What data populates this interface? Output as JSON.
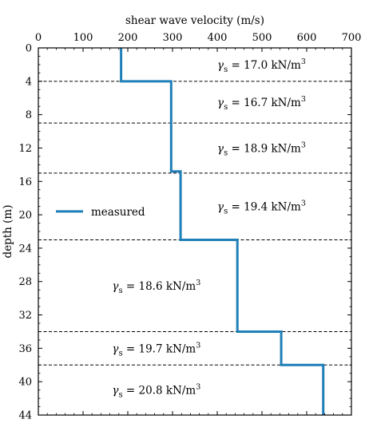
{
  "chart_data": {
    "type": "line",
    "xlabel": "shear wave velocity (m/s)",
    "ylabel": "depth (m)",
    "xlim": [
      0,
      700
    ],
    "ylim": [
      0,
      44
    ],
    "y_inverted": true,
    "x_axis_position": "top",
    "x_ticks": [
      0,
      100,
      200,
      300,
      400,
      500,
      600,
      700
    ],
    "y_ticks": [
      0,
      4,
      8,
      12,
      16,
      20,
      24,
      28,
      32,
      36,
      40,
      44
    ],
    "legend_position": "center-left",
    "series": [
      {
        "name": "measured",
        "color": "#1f7fb8",
        "profile": [
          {
            "vs": 185,
            "top": 0,
            "bottom": 4
          },
          {
            "vs": 297,
            "top": 4,
            "bottom": 14.8
          },
          {
            "vs": 318,
            "top": 14.8,
            "bottom": 23
          },
          {
            "vs": 445,
            "top": 23,
            "bottom": 34
          },
          {
            "vs": 543,
            "top": 34,
            "bottom": 38
          },
          {
            "vs": 637,
            "top": 38,
            "bottom": 44
          }
        ]
      }
    ],
    "layer_boundaries": [
      4,
      9,
      15,
      23,
      34,
      38
    ],
    "layer_labels": [
      {
        "symbol": "γ",
        "sub": "s",
        "text": " = 17.0 kN/m",
        "sup": "3",
        "depth": 2.0,
        "vs": 400
      },
      {
        "symbol": "γ",
        "sub": "s",
        "text": " = 16.7 kN/m",
        "sup": "3",
        "depth": 6.5,
        "vs": 400
      },
      {
        "symbol": "γ",
        "sub": "s",
        "text": " = 18.9 kN/m",
        "sup": "3",
        "depth": 12.0,
        "vs": 400
      },
      {
        "symbol": "γ",
        "sub": "s",
        "text": " = 19.4 kN/m",
        "sup": "3",
        "depth": 19.0,
        "vs": 400
      },
      {
        "symbol": "γ",
        "sub": "s",
        "text": " = 18.6 kN/m",
        "sup": "3",
        "depth": 28.5,
        "vs": 165
      },
      {
        "symbol": "γ",
        "sub": "s",
        "text": " = 19.7 kN/m",
        "sup": "3",
        "depth": 36.0,
        "vs": 165
      },
      {
        "symbol": "γ",
        "sub": "s",
        "text": " = 20.8 kN/m",
        "sup": "3",
        "depth": 41.0,
        "vs": 165
      }
    ]
  }
}
